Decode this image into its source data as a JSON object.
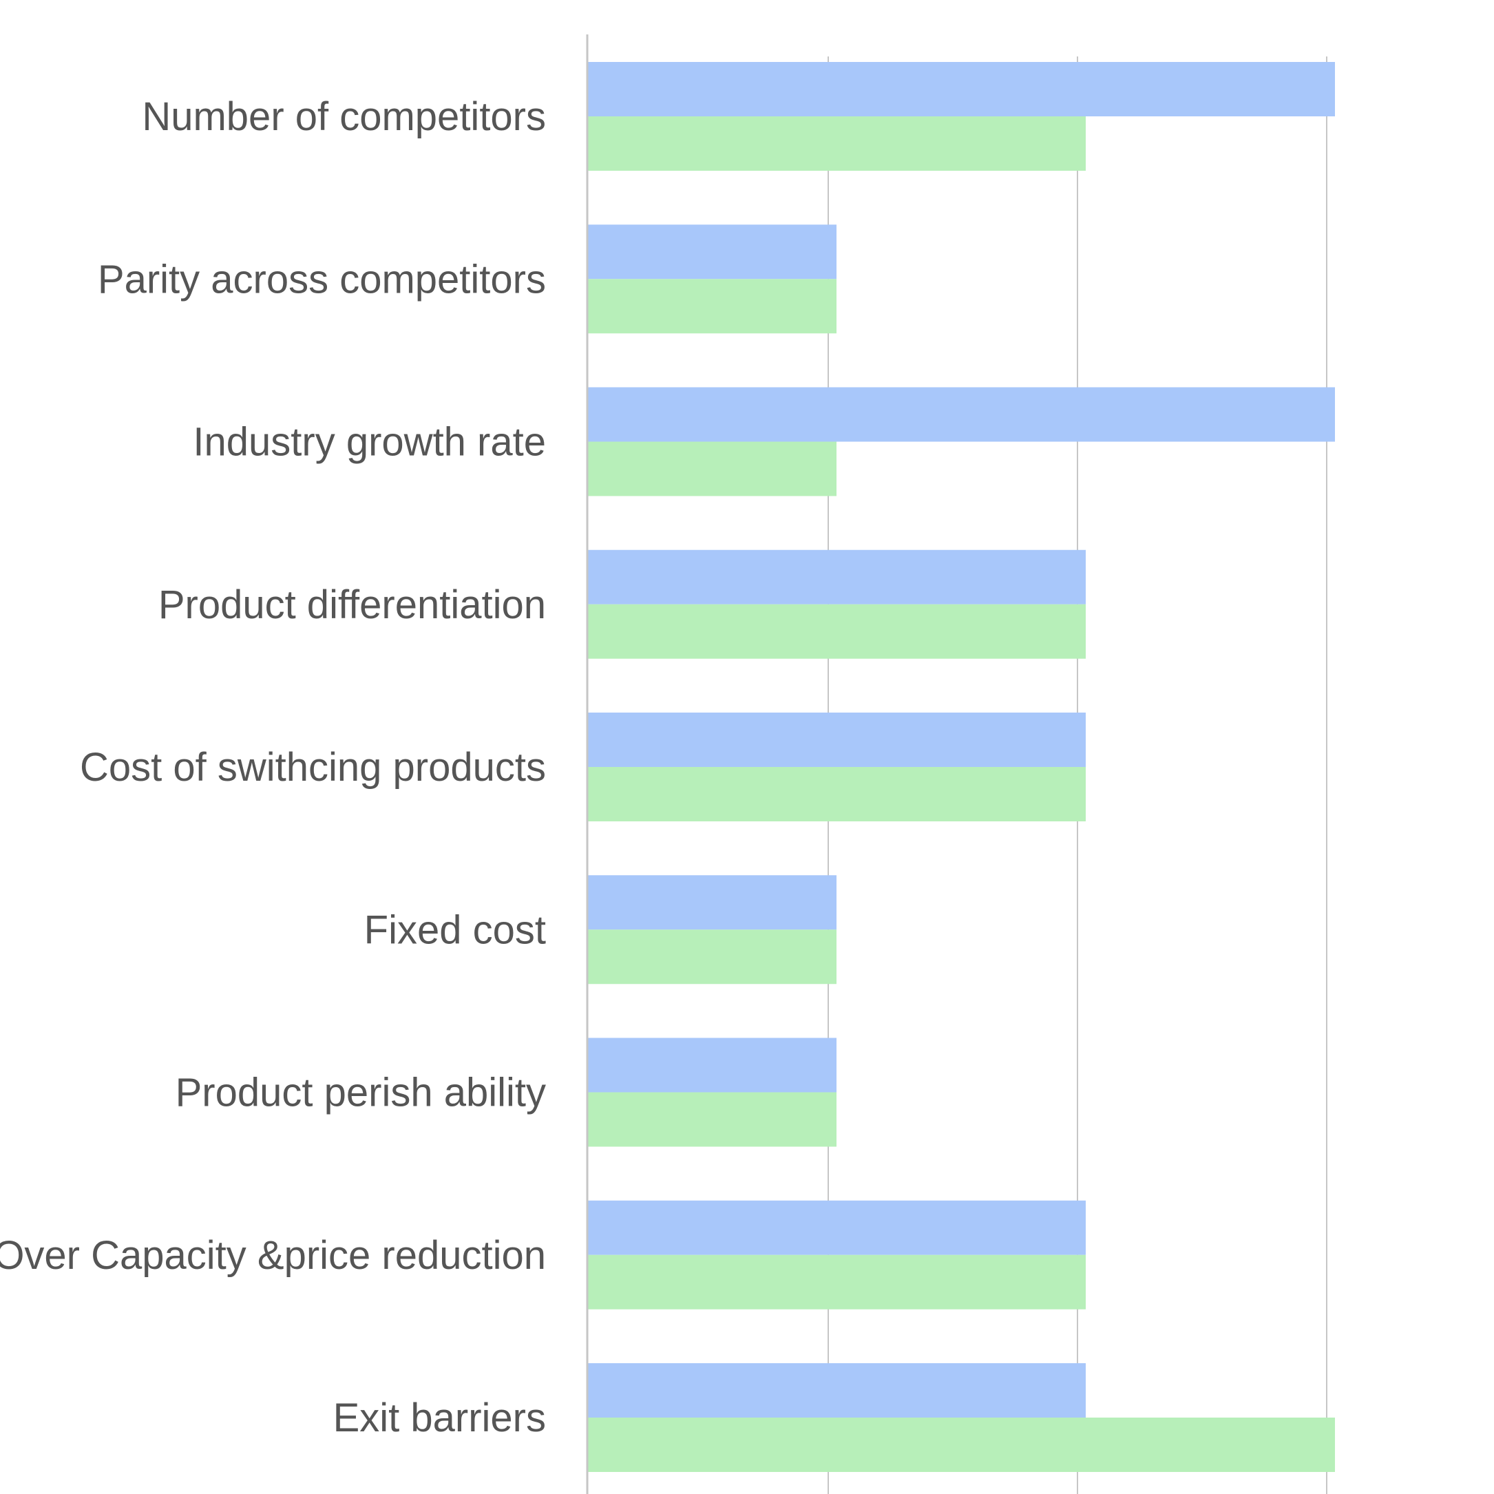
{
  "chart_data": {
    "type": "bar",
    "orientation": "horizontal",
    "categories": [
      "Number of competitors",
      "Parity across competitors",
      "Industry growth rate",
      "Product differentiation",
      "Cost of swithcing products",
      "Fixed cost",
      "Product perish ability",
      "Over Capacity &price reduction",
      "Exit barriers"
    ],
    "series": [
      {
        "color": "#a8c7fa",
        "values": [
          3,
          1,
          3,
          2,
          2,
          1,
          1,
          2,
          2
        ]
      },
      {
        "color": "#b7efb9",
        "values": [
          2,
          1,
          1,
          2,
          2,
          1,
          1,
          2,
          3
        ]
      }
    ],
    "xlim": [
      0,
      3
    ],
    "grid": true,
    "legend": "none",
    "title": "",
    "xlabel": "",
    "ylabel": ""
  }
}
